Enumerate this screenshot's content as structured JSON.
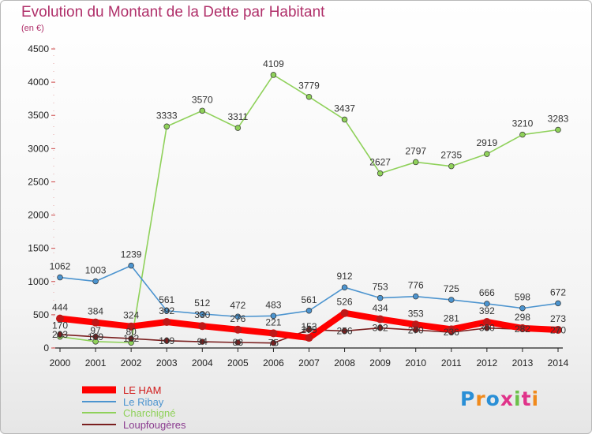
{
  "header": {
    "title": "Evolution du Montant de la Dette par Habitant",
    "unit": "(en €)"
  },
  "logo": {
    "text": "Proxiti",
    "letter_colors": [
      "#2a8fd6",
      "#f08a1c",
      "#2a8fd6",
      "#e0338a",
      "#6cc04a",
      "#e0338a",
      "#f08a1c"
    ]
  },
  "chart_data": {
    "type": "line",
    "x": [
      "2000",
      "2001",
      "2002",
      "2003",
      "2004",
      "2005",
      "2006",
      "2007",
      "2008",
      "2009",
      "2010",
      "2011",
      "2012",
      "2013",
      "2014"
    ],
    "yticks": [
      "0",
      "500",
      "1000",
      "1500",
      "2000",
      "2500",
      "3000",
      "3500",
      "4000",
      "4500"
    ],
    "ylim": [
      0,
      4500
    ],
    "grid": false,
    "legend_position": "bottom-left",
    "series": [
      {
        "name": "LE HAM",
        "color": "#ff0000",
        "values": [
          444,
          384,
          324,
          392,
          330,
          276,
          221,
          153,
          526,
          434,
          353,
          281,
          392,
          298,
          273
        ],
        "labels": [
          "444",
          "384",
          "324",
          "392",
          "330",
          "276",
          "221",
          "153",
          "526",
          "434",
          "353",
          "281",
          "392",
          "298",
          "273"
        ]
      },
      {
        "name": "Le Ribay",
        "color": "#4c94cf",
        "values": [
          1062,
          1003,
          1239,
          561,
          512,
          472,
          483,
          561,
          912,
          753,
          776,
          725,
          666,
          598,
          672
        ],
        "labels": [
          "1062",
          "1003",
          "1239",
          "561",
          "512",
          "472",
          "483",
          "561",
          "912",
          "753",
          "776",
          "725",
          "666",
          "598",
          "672"
        ]
      },
      {
        "name": "Charchigné",
        "color": "#8fd15a",
        "values": [
          170,
          97,
          80,
          3333,
          3570,
          3311,
          4109,
          3779,
          3437,
          2627,
          2797,
          2735,
          2919,
          3210,
          3283
        ],
        "labels": [
          "170",
          "97",
          "80",
          "3333",
          "3570",
          "3311",
          "4109",
          "3779",
          "3437",
          "2627",
          "2797",
          "2735",
          "2919",
          "3210",
          "3283"
        ]
      },
      {
        "name": "Loupfougères",
        "color": "#7a1f1f",
        "values": [
          203,
          169,
          142,
          109,
          94,
          83,
          75,
          275,
          256,
          302,
          270,
          236,
          300,
          282,
          270
        ],
        "labels": [
          "203",
          "169",
          "142",
          "109",
          "94",
          "83",
          "75",
          "275",
          "256",
          "302",
          "270",
          "236",
          "300",
          "282",
          "270"
        ]
      }
    ]
  }
}
